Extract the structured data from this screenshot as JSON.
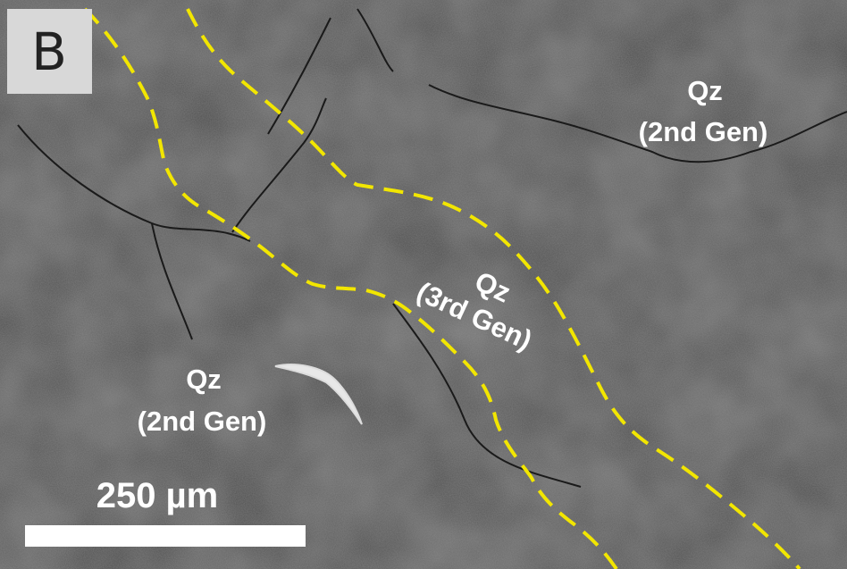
{
  "panel_label": "B",
  "annotations": [
    {
      "lines": [
        "Qz",
        "(2nd Gen)"
      ]
    },
    {
      "lines": [
        "Qz",
        "(3rd Gen)"
      ]
    },
    {
      "lines": [
        "Qz",
        "(2nd Gen)"
      ]
    }
  ],
  "scale_bar": {
    "label": "250 µm"
  }
}
